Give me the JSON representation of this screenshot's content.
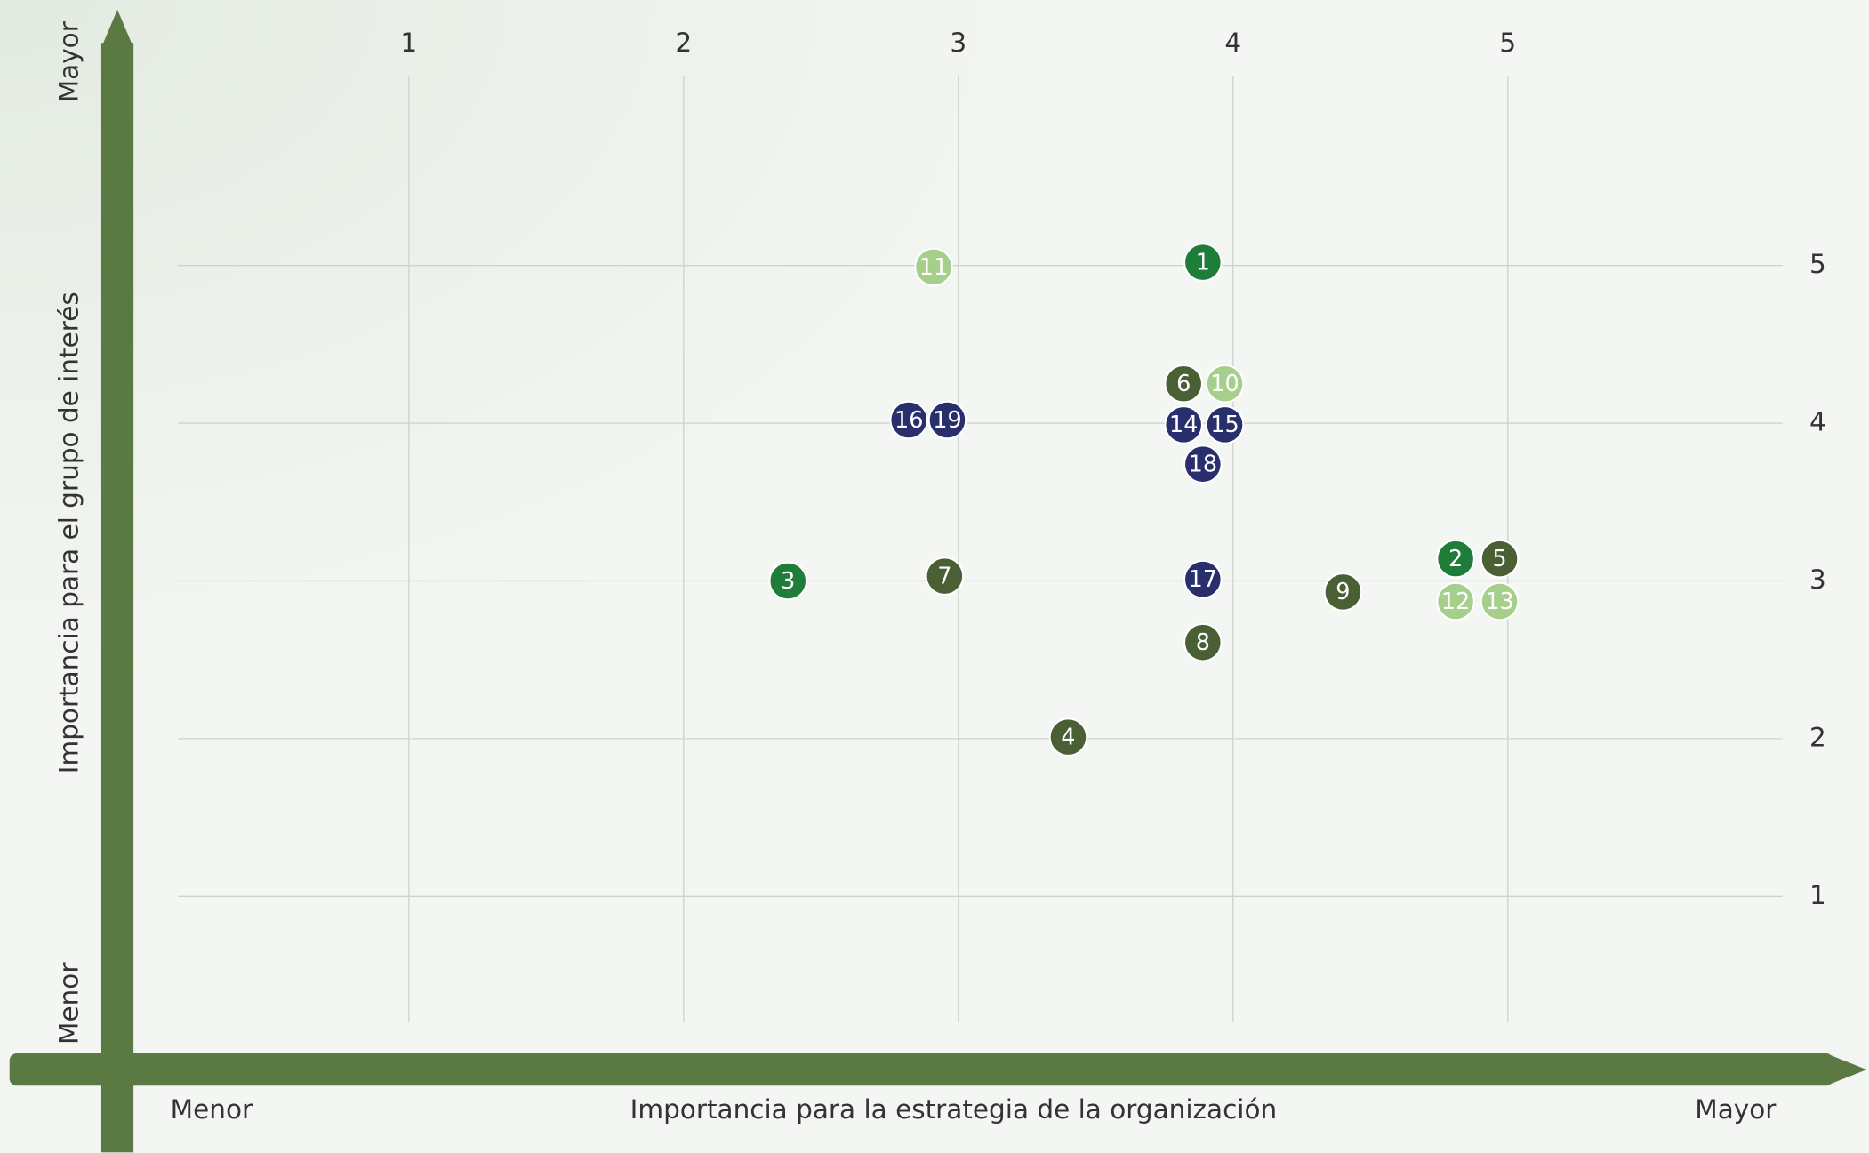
{
  "chart_data": {
    "type": "scatter",
    "x_label": "Importancia para la estrategia de la organización",
    "y_label": "Importancia para el grupo de interés",
    "x_low": "Menor",
    "x_high": "Mayor",
    "y_low": "Menor",
    "y_high": "Mayor",
    "xlim": [
      0.16,
      6.0
    ],
    "xticks": [
      1,
      2,
      3,
      4,
      5
    ],
    "ylim": [
      0.2,
      6.2
    ],
    "yticks": [
      1,
      2,
      3,
      4,
      5
    ],
    "grid": true,
    "series": [
      {
        "color": "#1f7d3a",
        "labels": [
          "1",
          "2",
          "3"
        ],
        "x": [
          3.89,
          4.81,
          2.38
        ],
        "values": [
          5.02,
          3.14,
          3.0
        ]
      },
      {
        "color": "#4b5f35",
        "labels": [
          "4",
          "5",
          "6",
          "7",
          "8",
          "9"
        ],
        "x": [
          3.4,
          4.97,
          3.82,
          2.95,
          3.89,
          4.4
        ],
        "values": [
          2.01,
          3.14,
          4.25,
          3.03,
          2.61,
          2.93
        ]
      },
      {
        "color": "#a6cf8c",
        "labels": [
          "10",
          "11",
          "12",
          "13"
        ],
        "x": [
          3.97,
          2.91,
          4.81,
          4.97
        ],
        "values": [
          4.25,
          4.99,
          2.87,
          2.87
        ]
      },
      {
        "color": "#292e6c",
        "labels": [
          "14",
          "15",
          "16",
          "17",
          "18",
          "19"
        ],
        "x": [
          3.82,
          3.97,
          2.82,
          3.89,
          3.89,
          2.96
        ],
        "values": [
          3.99,
          3.99,
          4.02,
          3.01,
          3.74,
          4.02
        ]
      }
    ]
  }
}
